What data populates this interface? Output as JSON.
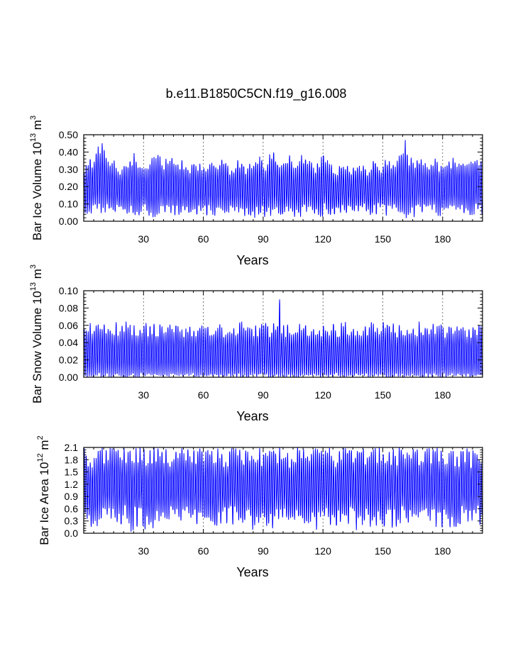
{
  "title": "b.e11.B1850C5CN.f19_g16.008",
  "colors": {
    "series": "#0000ff",
    "grid": "#000000"
  },
  "chart_data": [
    {
      "type": "line",
      "ylabel_main": "Bar Ice Volume 10",
      "ylabel_exp": "13",
      "ylabel_unit": " m",
      "ylabel_unit_exp": "3",
      "xlabel": "Years",
      "xlim": [
        0,
        200
      ],
      "ylim": [
        0.0,
        0.5
      ],
      "xticks": [
        30,
        60,
        90,
        120,
        150,
        180
      ],
      "xtick_labels": [
        "30",
        "60",
        "90",
        "120",
        "150",
        "180"
      ],
      "yticks": [
        0.0,
        0.1,
        0.2,
        0.3,
        0.4,
        0.5
      ],
      "ytick_labels": [
        "0.00",
        "0.10",
        "0.20",
        "0.30",
        "0.40",
        "0.50"
      ],
      "grid": "vertical dashed at 30-year intervals",
      "series": [
        {
          "monthly_cycle": true,
          "yearly_max_approx": [
            0.28,
            0.32,
            0.34,
            0.36,
            0.33,
            0.35,
            0.38,
            0.42,
            0.4,
            0.44,
            0.43,
            0.4,
            0.36,
            0.34,
            0.35,
            0.33,
            0.3,
            0.31,
            0.29,
            0.3,
            0.32,
            0.34,
            0.33,
            0.35,
            0.36,
            0.38,
            0.37,
            0.34,
            0.33,
            0.32,
            0.3,
            0.31,
            0.33,
            0.35,
            0.37,
            0.38,
            0.39,
            0.37,
            0.36,
            0.34,
            0.33,
            0.34,
            0.35,
            0.36,
            0.35,
            0.33,
            0.32,
            0.31,
            0.3,
            0.33,
            0.34,
            0.33,
            0.32,
            0.31,
            0.33,
            0.34,
            0.35,
            0.33,
            0.32,
            0.31,
            0.3,
            0.29,
            0.31,
            0.33,
            0.34,
            0.33,
            0.32,
            0.33,
            0.35,
            0.36,
            0.34,
            0.33,
            0.32,
            0.3,
            0.31,
            0.32,
            0.33,
            0.34,
            0.33,
            0.32,
            0.31,
            0.3,
            0.32,
            0.33,
            0.34,
            0.33,
            0.34,
            0.35,
            0.36,
            0.35,
            0.33,
            0.32,
            0.34,
            0.37,
            0.4,
            0.42,
            0.38,
            0.33,
            0.31,
            0.32,
            0.33,
            0.34,
            0.36,
            0.37,
            0.35,
            0.34,
            0.33,
            0.34,
            0.35,
            0.36,
            0.37,
            0.36,
            0.35,
            0.34,
            0.33,
            0.32,
            0.31,
            0.33,
            0.35,
            0.37,
            0.38,
            0.36,
            0.34,
            0.32,
            0.31,
            0.3,
            0.29,
            0.3,
            0.31,
            0.32,
            0.33,
            0.32,
            0.31,
            0.3,
            0.29,
            0.31,
            0.32,
            0.33,
            0.34,
            0.32,
            0.31,
            0.3,
            0.29,
            0.31,
            0.32,
            0.34,
            0.33,
            0.32,
            0.31,
            0.3,
            0.32,
            0.33,
            0.34,
            0.35,
            0.34,
            0.33,
            0.32,
            0.34,
            0.36,
            0.38,
            0.4,
            0.45,
            0.38,
            0.36,
            0.35,
            0.34,
            0.33,
            0.34,
            0.35,
            0.36,
            0.34,
            0.33,
            0.32,
            0.31,
            0.32,
            0.33,
            0.34,
            0.33,
            0.32,
            0.31,
            0.3,
            0.31,
            0.32,
            0.33,
            0.34,
            0.35,
            0.34,
            0.33,
            0.32,
            0.33,
            0.34,
            0.33,
            0.32,
            0.31,
            0.34,
            0.35,
            0.36,
            0.35,
            0.34,
            0.33
          ],
          "yearly_min_approx": 0.05
        }
      ]
    },
    {
      "type": "line",
      "ylabel_main": "Bar Snow Volume 10",
      "ylabel_exp": "13",
      "ylabel_unit": " m",
      "ylabel_unit_exp": "3",
      "xlabel": "Years",
      "xlim": [
        0,
        200
      ],
      "ylim": [
        0.0,
        0.1
      ],
      "xticks": [
        30,
        60,
        90,
        120,
        150,
        180
      ],
      "xtick_labels": [
        "30",
        "60",
        "90",
        "120",
        "150",
        "180"
      ],
      "yticks": [
        0.0,
        0.02,
        0.04,
        0.06,
        0.08,
        0.1
      ],
      "ytick_labels": [
        "0.00",
        "0.02",
        "0.04",
        "0.06",
        "0.08",
        "0.10"
      ],
      "grid": "vertical dashed at 30-year intervals",
      "series": [
        {
          "monthly_cycle": true,
          "yearly_max_approx": 0.055,
          "peak": {
            "year": 98,
            "value": 0.087
          },
          "yearly_min_approx": 0.0
        }
      ]
    },
    {
      "type": "line",
      "ylabel_main": "Bar Ice Area 10",
      "ylabel_exp": "12",
      "ylabel_unit": " m",
      "ylabel_unit_exp": "2",
      "xlabel": "Years",
      "xlim": [
        0,
        200
      ],
      "ylim": [
        0.0,
        2.1
      ],
      "xticks": [
        30,
        60,
        90,
        120,
        150,
        180
      ],
      "xtick_labels": [
        "30",
        "60",
        "90",
        "120",
        "150",
        "180"
      ],
      "yticks": [
        0.0,
        0.3,
        0.6,
        0.9,
        1.2,
        1.5,
        1.8,
        2.1
      ],
      "ytick_labels": [
        "0.0",
        "0.3",
        "0.6",
        "0.9",
        "1.2",
        "1.5",
        "1.8",
        "2.1"
      ],
      "grid": "vertical dashed at 30-year intervals",
      "series": [
        {
          "monthly_cycle": true,
          "yearly_max_approx": 1.95,
          "yearly_min_approx": 0.25
        }
      ]
    }
  ]
}
